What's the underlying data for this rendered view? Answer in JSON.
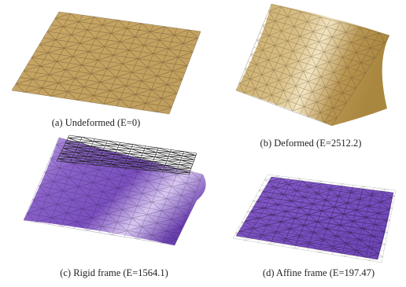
{
  "figure": {
    "captions": [
      "(a) Undeformed (E=0)",
      "(b) Deformed (E=2512.2)",
      "(c) Rigid frame (E=1564.1)",
      "(d) Affine frame (E=197.47)"
    ]
  }
}
